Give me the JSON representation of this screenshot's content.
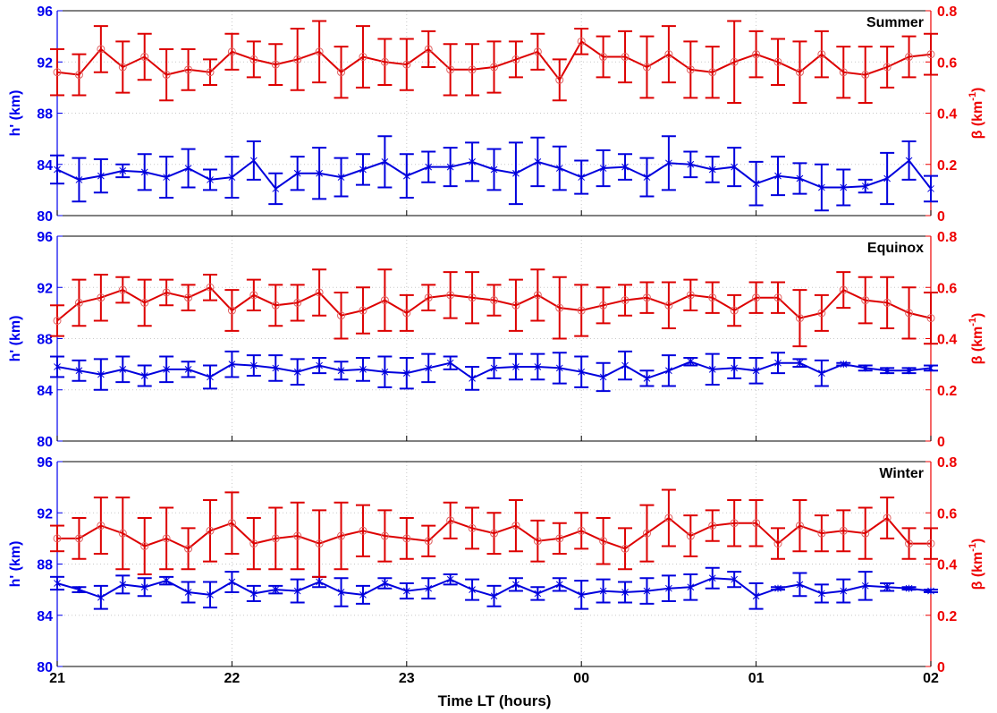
{
  "figure": {
    "xlabel": "Time LT (hours)",
    "x_tick_labels": [
      "21",
      "22",
      "23",
      "00",
      "01",
      "02"
    ],
    "left_axis_color": "#0000ee",
    "right_axis_color": "#ee0000",
    "series_colors": {
      "h_prime": "#0000dd",
      "beta": "#dd0000"
    },
    "grid": "dotted",
    "panel_label_position": "top-right"
  },
  "chart_data": [
    {
      "type": "line",
      "panel_label": "Summer",
      "ylabel_left": "h' (km)",
      "ylabel_right_base": "β (km",
      "ylabel_right_sup": "-1",
      "ylabel_right_end": ")",
      "xlim": [
        0,
        5
      ],
      "ylim_left": [
        80,
        96
      ],
      "yticks_left": [
        80,
        84,
        88,
        92,
        96
      ],
      "ylim_right": [
        0,
        0.8
      ],
      "yticks_right": [
        "0",
        "0.2",
        "0.4",
        "0.6",
        "0.8"
      ],
      "x_tick_values": [
        0,
        1,
        2,
        3,
        4,
        5
      ],
      "x": [
        0,
        0.125,
        0.25,
        0.375,
        0.5,
        0.625,
        0.75,
        0.875,
        1,
        1.125,
        1.25,
        1.375,
        1.5,
        1.625,
        1.75,
        1.875,
        2,
        2.125,
        2.25,
        2.375,
        2.5,
        2.625,
        2.75,
        2.875,
        3,
        3.125,
        3.25,
        3.375,
        3.5,
        3.625,
        3.75,
        3.875,
        4,
        4.125,
        4.25,
        4.375,
        4.5,
        4.625,
        4.75,
        4.875,
        5
      ],
      "series": [
        {
          "axis": "left",
          "marker": "asterisk",
          "values": [
            83.6,
            82.8,
            83.1,
            83.5,
            83.4,
            83.0,
            83.7,
            82.8,
            83.0,
            84.3,
            82.1,
            83.3,
            83.3,
            83.0,
            83.6,
            84.2,
            83.1,
            83.8,
            83.8,
            84.2,
            83.6,
            83.3,
            84.2,
            83.7,
            83.0,
            83.7,
            83.8,
            83.0,
            84.1,
            84.0,
            83.6,
            83.8,
            82.5,
            83.1,
            82.9,
            82.2,
            82.2,
            82.3,
            82.9,
            84.3,
            82.1
          ],
          "errors": [
            1.1,
            1.7,
            1.3,
            0.5,
            1.4,
            1.6,
            1.5,
            0.8,
            1.6,
            1.5,
            1.2,
            1.3,
            2.0,
            1.5,
            1.2,
            2.0,
            1.7,
            1.2,
            1.5,
            1.5,
            1.6,
            2.4,
            1.9,
            1.7,
            1.3,
            1.4,
            1.0,
            1.5,
            2.1,
            1.0,
            1.0,
            1.5,
            1.7,
            1.5,
            1.2,
            1.8,
            1.4,
            0.5,
            2.0,
            1.5,
            1.0
          ]
        },
        {
          "axis": "right",
          "marker": "circle",
          "values": [
            0.56,
            0.55,
            0.65,
            0.58,
            0.62,
            0.55,
            0.57,
            0.56,
            0.64,
            0.61,
            0.59,
            0.61,
            0.64,
            0.56,
            0.62,
            0.6,
            0.59,
            0.65,
            0.57,
            0.57,
            0.58,
            0.61,
            0.64,
            0.53,
            0.68,
            0.62,
            0.62,
            0.58,
            0.63,
            0.57,
            0.56,
            0.6,
            0.63,
            0.6,
            0.56,
            0.63,
            0.56,
            0.55,
            0.58,
            0.62,
            0.63
          ],
          "errors": [
            0.09,
            0.08,
            0.09,
            0.1,
            0.09,
            0.1,
            0.08,
            0.05,
            0.07,
            0.07,
            0.08,
            0.12,
            0.12,
            0.1,
            0.12,
            0.09,
            0.1,
            0.07,
            0.1,
            0.1,
            0.1,
            0.07,
            0.07,
            0.08,
            0.05,
            0.08,
            0.1,
            0.12,
            0.11,
            0.11,
            0.1,
            0.16,
            0.09,
            0.09,
            0.12,
            0.09,
            0.1,
            0.11,
            0.08,
            0.08,
            0.08
          ]
        }
      ]
    },
    {
      "type": "line",
      "panel_label": "Equinox",
      "ylabel_left": "h' (km)",
      "ylabel_right_base": "β (km",
      "ylabel_right_sup": "-1",
      "ylabel_right_end": ")",
      "xlim": [
        0,
        5
      ],
      "ylim_left": [
        80,
        96
      ],
      "yticks_left": [
        80,
        84,
        88,
        92,
        96
      ],
      "ylim_right": [
        0,
        0.8
      ],
      "yticks_right": [
        "0",
        "0.2",
        "0.4",
        "0.6",
        "0.8"
      ],
      "x_tick_values": [
        0,
        1,
        2,
        3,
        4,
        5
      ],
      "x": [
        0,
        0.125,
        0.25,
        0.375,
        0.5,
        0.625,
        0.75,
        0.875,
        1,
        1.125,
        1.25,
        1.375,
        1.5,
        1.625,
        1.75,
        1.875,
        2,
        2.125,
        2.25,
        2.375,
        2.5,
        2.625,
        2.75,
        2.875,
        3,
        3.125,
        3.25,
        3.375,
        3.5,
        3.625,
        3.75,
        3.875,
        4,
        4.125,
        4.25,
        4.375,
        4.5,
        4.625,
        4.75,
        4.875,
        5
      ],
      "series": [
        {
          "axis": "left",
          "marker": "asterisk",
          "values": [
            85.8,
            85.5,
            85.2,
            85.6,
            85.1,
            85.6,
            85.6,
            85.0,
            86.0,
            85.9,
            85.7,
            85.4,
            85.9,
            85.5,
            85.6,
            85.4,
            85.3,
            85.7,
            86.1,
            84.9,
            85.7,
            85.8,
            85.8,
            85.7,
            85.4,
            85.0,
            85.9,
            84.9,
            85.5,
            86.2,
            85.6,
            85.7,
            85.5,
            86.1,
            86.1,
            85.3,
            86.0,
            85.7,
            85.5,
            85.5,
            85.7
          ],
          "errors": [
            0.8,
            0.8,
            1.2,
            1.0,
            0.8,
            1.0,
            0.6,
            0.9,
            1.0,
            0.8,
            1.0,
            1.0,
            0.6,
            0.7,
            0.9,
            1.2,
            1.2,
            1.1,
            0.5,
            0.9,
            0.8,
            1.0,
            1.0,
            1.2,
            1.2,
            1.1,
            1.1,
            0.6,
            1.2,
            0.3,
            1.2,
            0.8,
            1.0,
            0.8,
            0.3,
            1.0,
            0.1,
            0.2,
            0.2,
            0.2,
            0.2
          ]
        },
        {
          "axis": "right",
          "marker": "circle",
          "values": [
            0.47,
            0.54,
            0.56,
            0.59,
            0.54,
            0.58,
            0.56,
            0.6,
            0.51,
            0.57,
            0.53,
            0.54,
            0.58,
            0.49,
            0.51,
            0.55,
            0.5,
            0.56,
            0.57,
            0.56,
            0.55,
            0.53,
            0.57,
            0.52,
            0.51,
            0.53,
            0.55,
            0.56,
            0.53,
            0.57,
            0.56,
            0.51,
            0.56,
            0.56,
            0.48,
            0.5,
            0.59,
            0.55,
            0.54,
            0.5,
            0.48
          ],
          "errors": [
            0.06,
            0.09,
            0.09,
            0.05,
            0.09,
            0.05,
            0.05,
            0.05,
            0.08,
            0.06,
            0.08,
            0.07,
            0.09,
            0.09,
            0.09,
            0.12,
            0.07,
            0.05,
            0.09,
            0.1,
            0.06,
            0.1,
            0.1,
            0.12,
            0.1,
            0.07,
            0.06,
            0.06,
            0.09,
            0.06,
            0.06,
            0.06,
            0.06,
            0.06,
            0.11,
            0.07,
            0.07,
            0.09,
            0.1,
            0.1,
            0.1
          ]
        }
      ]
    },
    {
      "type": "line",
      "panel_label": "Winter",
      "ylabel_left": "h' (km)",
      "ylabel_right_base": "β (km",
      "ylabel_right_sup": "-1",
      "ylabel_right_end": ")",
      "xlim": [
        0,
        5
      ],
      "ylim_left": [
        80,
        96
      ],
      "yticks_left": [
        80,
        84,
        88,
        92,
        96
      ],
      "ylim_right": [
        0,
        0.8
      ],
      "yticks_right": [
        "0",
        "0.2",
        "0.4",
        "0.6",
        "0.8"
      ],
      "x_tick_values": [
        0,
        1,
        2,
        3,
        4,
        5
      ],
      "x": [
        0,
        0.125,
        0.25,
        0.375,
        0.5,
        0.625,
        0.75,
        0.875,
        1,
        1.125,
        1.25,
        1.375,
        1.5,
        1.625,
        1.75,
        1.875,
        2,
        2.125,
        2.25,
        2.375,
        2.5,
        2.625,
        2.75,
        2.875,
        3,
        3.125,
        3.25,
        3.375,
        3.5,
        3.625,
        3.75,
        3.875,
        4,
        4.125,
        4.25,
        4.375,
        4.5,
        4.625,
        4.75,
        4.875,
        5
      ],
      "series": [
        {
          "axis": "left",
          "marker": "asterisk",
          "values": [
            86.5,
            86.0,
            85.4,
            86.4,
            86.2,
            86.7,
            85.8,
            85.6,
            86.6,
            85.7,
            86.0,
            85.9,
            86.6,
            85.8,
            85.6,
            86.5,
            85.9,
            86.1,
            86.8,
            86.0,
            85.5,
            86.4,
            85.7,
            86.4,
            85.6,
            85.9,
            85.8,
            85.9,
            86.1,
            86.2,
            86.9,
            86.8,
            85.5,
            86.1,
            86.4,
            85.7,
            85.9,
            86.3,
            86.2,
            86.1,
            85.9
          ],
          "errors": [
            0.5,
            0.2,
            0.9,
            0.7,
            0.7,
            0.3,
            0.8,
            1.0,
            0.8,
            0.6,
            0.3,
            0.9,
            0.4,
            1.1,
            0.7,
            0.4,
            0.6,
            0.8,
            0.4,
            0.8,
            0.8,
            0.5,
            0.5,
            0.5,
            1.1,
            0.9,
            0.8,
            1.0,
            1.0,
            1.0,
            0.8,
            0.6,
            1.0,
            0.1,
            0.9,
            0.7,
            0.9,
            1.1,
            0.3,
            0.1,
            0.1
          ]
        },
        {
          "axis": "right",
          "marker": "circle",
          "values": [
            0.5,
            0.5,
            0.55,
            0.52,
            0.47,
            0.5,
            0.46,
            0.53,
            0.56,
            0.48,
            0.5,
            0.51,
            0.48,
            0.51,
            0.53,
            0.51,
            0.5,
            0.49,
            0.57,
            0.54,
            0.52,
            0.55,
            0.49,
            0.5,
            0.53,
            0.49,
            0.46,
            0.52,
            0.58,
            0.51,
            0.55,
            0.56,
            0.56,
            0.48,
            0.55,
            0.52,
            0.53,
            0.52,
            0.58,
            0.48,
            0.48
          ],
          "errors": [
            0.05,
            0.08,
            0.11,
            0.14,
            0.11,
            0.12,
            0.08,
            0.12,
            0.12,
            0.1,
            0.12,
            0.13,
            0.13,
            0.13,
            0.1,
            0.1,
            0.08,
            0.06,
            0.07,
            0.08,
            0.08,
            0.1,
            0.08,
            0.06,
            0.07,
            0.09,
            0.08,
            0.11,
            0.11,
            0.08,
            0.06,
            0.09,
            0.09,
            0.06,
            0.1,
            0.07,
            0.08,
            0.1,
            0.08,
            0.06,
            0.06
          ]
        }
      ]
    }
  ]
}
